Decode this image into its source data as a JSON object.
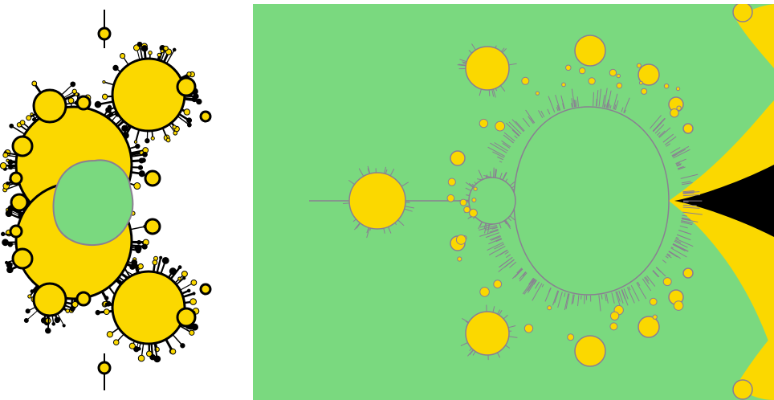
{
  "colors": {
    "background": "#ffffff",
    "interior_green": "#7ad97f",
    "bulb_yellow": "#fbd800",
    "boundary_black": "#000000",
    "filament_gray": "#8a7f92"
  },
  "panels": {
    "left": {
      "icon": "julia-set-fractal"
    },
    "right": {
      "icon": "mandelbrot-set-fractal"
    }
  }
}
